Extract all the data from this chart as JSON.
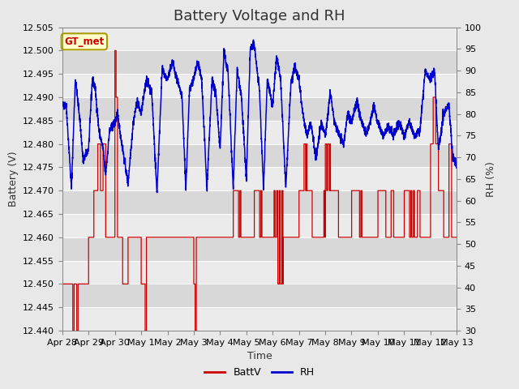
{
  "title": "Battery Voltage and RH",
  "xlabel": "Time",
  "ylabel_left": "Battery (V)",
  "ylabel_right": "RH (%)",
  "annotation_text": "GT_met",
  "annotation_color": "#cc0000",
  "annotation_bg": "#ffffcc",
  "annotation_border": "#aa9900",
  "left_ylim": [
    12.44,
    12.505
  ],
  "right_ylim": [
    30,
    100
  ],
  "left_yticks": [
    12.44,
    12.445,
    12.45,
    12.455,
    12.46,
    12.465,
    12.47,
    12.475,
    12.48,
    12.485,
    12.49,
    12.495,
    12.5,
    12.505
  ],
  "right_yticks": [
    30,
    35,
    40,
    45,
    50,
    55,
    60,
    65,
    70,
    75,
    80,
    85,
    90,
    95,
    100
  ],
  "x_ticklabels": [
    "Apr 28",
    "Apr 29",
    "Apr 30",
    "May 1",
    "May 2",
    "May 3",
    "May 4",
    "May 5",
    "May 6",
    "May 7",
    "May 8",
    "May 9",
    "May 10",
    "May 11",
    "May 12",
    "May 13"
  ],
  "batt_color": "#cc0000",
  "rh_color": "#0000cc",
  "bg_color": "#e8e8e8",
  "plot_bg_light": "#ebebeb",
  "plot_bg_dark": "#d8d8d8",
  "grid_color": "#ffffff",
  "legend_batt": "BattV",
  "legend_rh": "RH",
  "title_fontsize": 13,
  "axis_fontsize": 9,
  "tick_fontsize": 8
}
